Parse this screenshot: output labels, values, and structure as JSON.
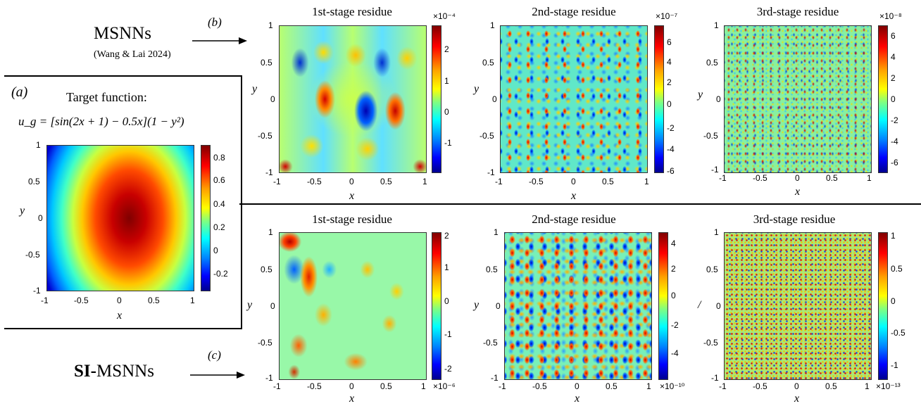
{
  "row_labels": {
    "msnn_name": "MSNNs",
    "msnn_cite": "(Wang & Lai 2024)",
    "b_label": "(b)",
    "c_label": "(c)",
    "si_bold": "SI-",
    "si_rest": "MSNNs"
  },
  "target": {
    "panel_label": "(a)",
    "heading": "Target function:",
    "formula": "u_g = [sin(2x + 1) − 0.5x](1 − y²)",
    "cbar_ticks": [
      "0.8",
      "0.6",
      "0.4",
      "0.2",
      "0",
      "-0.2"
    ]
  },
  "axes": {
    "x_ticks": [
      "-1",
      "-0.5",
      "0",
      "0.5",
      "1"
    ],
    "y_ticks": [
      "1",
      "0.5",
      "0",
      "-0.5",
      "-1"
    ],
    "x_var": "x",
    "y_var": "y"
  },
  "panels": [
    {
      "title": "1st-stage residue",
      "exponent": "×10⁻⁴",
      "cbar_ticks": [
        "2",
        "1",
        "0",
        "-1"
      ],
      "y_var": "y"
    },
    {
      "title": "2nd-stage residue",
      "exponent": "×10⁻⁷",
      "cbar_ticks": [
        "6",
        "4",
        "2",
        "0",
        "-2",
        "-4",
        "-6"
      ],
      "y_var": "y"
    },
    {
      "title": "3rd-stage residue",
      "exponent": "×10⁻⁸",
      "cbar_ticks": [
        "6",
        "4",
        "2",
        "0",
        "-2",
        "-4",
        "-6"
      ],
      "y_var": "y"
    },
    {
      "title": "1st-stage residue",
      "exponent": "×10⁻⁶",
      "cbar_ticks": [
        "2",
        "1",
        "0",
        "-1",
        "-2"
      ],
      "y_var": "y"
    },
    {
      "title": "2nd-stage residue",
      "exponent": "×10⁻¹⁰",
      "cbar_ticks": [
        "4",
        "2",
        "0",
        "-2",
        "-4"
      ],
      "y_var": "y"
    },
    {
      "title": "3rd-stage residue",
      "exponent": "×10⁻¹³",
      "cbar_ticks": [
        "1",
        "0.5",
        "0",
        "-0.5",
        "-1"
      ],
      "y_var": "/"
    }
  ]
}
